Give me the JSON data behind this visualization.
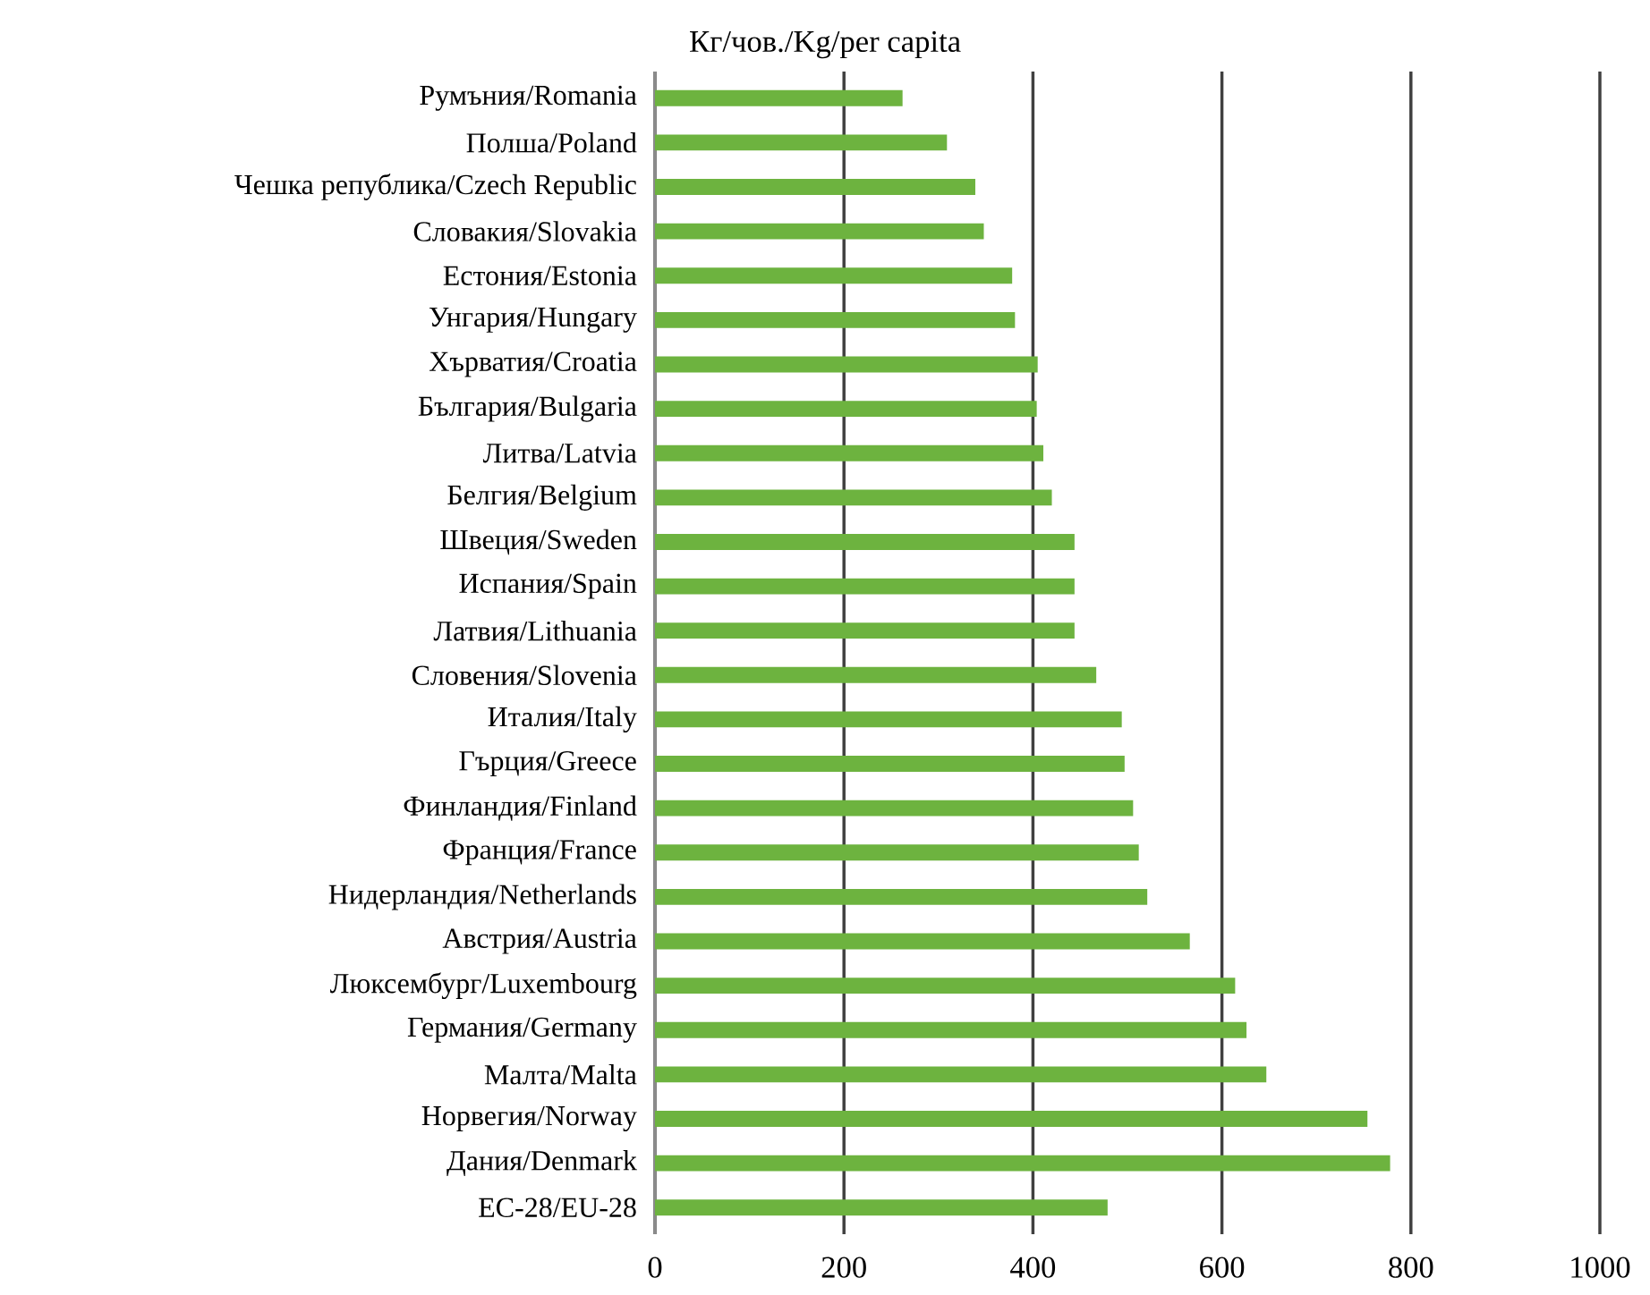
{
  "chart_data": {
    "type": "bar",
    "orientation": "horizontal",
    "xlabel": "Кг/чов./Kg/per capita",
    "categories": [
      "Румъния/Romania",
      "Полша/Poland",
      "Чешка република/Czech Republic",
      "Словакия/Slovakia",
      "Естония/Estonia",
      "Унгария/Hungary",
      "Хърватия/Croatia",
      "България/Bulgaria",
      "Литва/Latvia",
      "Белгия/Belgium",
      "Швеция/Sweden",
      "Испания/Spain",
      "Латвия/Lithuania",
      "Словения/Slovenia",
      "Италия/Italy",
      "Гърция/Greece",
      "Финландия/Finland",
      "Франция/France",
      "Нидерландия/Netherlands",
      "Австрия/Austria",
      "Люксембург/Luxembourg",
      "Германия/Germany",
      "Малта/Malta",
      "Норвегия/Norway",
      "Дания/Denmark",
      "ЕС-28/EU-28"
    ],
    "values": [
      262,
      309,
      339,
      348,
      378,
      381,
      405,
      404,
      411,
      420,
      444,
      444,
      444,
      467,
      494,
      497,
      506,
      512,
      521,
      566,
      614,
      626,
      647,
      754,
      778,
      479
    ],
    "color": "#6db33f",
    "xlim": [
      0,
      1000
    ],
    "xticks": [
      0,
      200,
      400,
      600,
      800,
      1000
    ],
    "grid": "x"
  }
}
